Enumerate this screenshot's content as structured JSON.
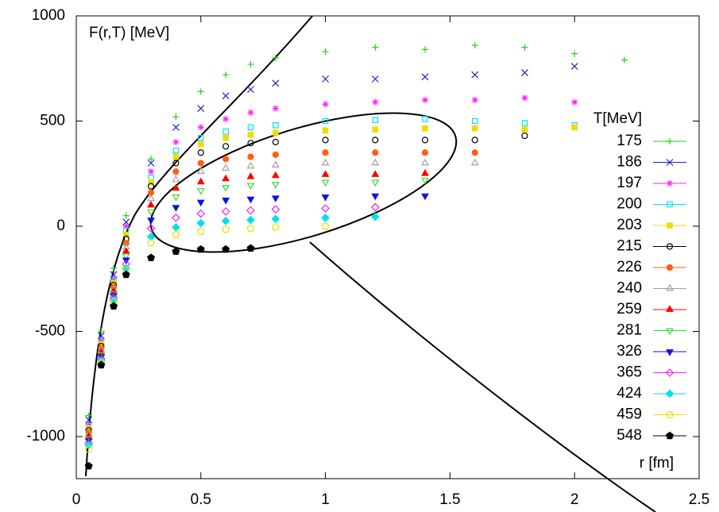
{
  "chart_data": {
    "type": "scatter",
    "ylabel": "F(r,T) [MeV]",
    "xlabel": "r [fm]",
    "legend_title": "T[MeV]",
    "legend_position": "right",
    "x": [
      0.05,
      0.1,
      0.15,
      0.2,
      0.3,
      0.4,
      0.5,
      0.6,
      0.7,
      0.8,
      1.0,
      1.2,
      1.4,
      1.6,
      1.8,
      2.0,
      2.2
    ],
    "xlim": [
      0,
      2.5
    ],
    "xticks": [
      0,
      0.5,
      1,
      1.5,
      2,
      2.5
    ],
    "ylim": [
      -1200,
      1000
    ],
    "yticks": [
      -1000,
      -500,
      0,
      500,
      1000
    ],
    "series": [
      {
        "name": "175",
        "color": "#22cc22",
        "marker": "plus",
        "values": [
          -900,
          -500,
          -200,
          50,
          320,
          520,
          640,
          720,
          770,
          800,
          830,
          850,
          840,
          860,
          850,
          820,
          790
        ]
      },
      {
        "name": "186",
        "color": "#2222cc",
        "marker": "cross",
        "values": [
          -920,
          -520,
          -230,
          20,
          300,
          470,
          560,
          620,
          650,
          680,
          700,
          700,
          710,
          720,
          730,
          760,
          null
        ]
      },
      {
        "name": "197",
        "color": "#ff22ff",
        "marker": "star",
        "values": [
          -940,
          -540,
          -250,
          0,
          260,
          400,
          470,
          510,
          540,
          560,
          580,
          590,
          600,
          600,
          610,
          590,
          null
        ]
      },
      {
        "name": "200",
        "color": "#00e0ff",
        "marker": "square",
        "values": [
          -950,
          -550,
          -260,
          -20,
          230,
          360,
          420,
          450,
          470,
          480,
          500,
          505,
          510,
          500,
          490,
          480,
          null
        ]
      },
      {
        "name": "203",
        "color": "#eedd00",
        "marker": "square-filled",
        "values": [
          -960,
          -560,
          -270,
          -40,
          210,
          330,
          390,
          420,
          435,
          445,
          455,
          460,
          465,
          465,
          460,
          470,
          null
        ]
      },
      {
        "name": "215",
        "color": "#000000",
        "marker": "circle",
        "values": [
          -970,
          -570,
          -280,
          -60,
          190,
          300,
          350,
          380,
          395,
          400,
          410,
          410,
          410,
          410,
          430,
          null,
          null
        ]
      },
      {
        "name": "226",
        "color": "#ff6010",
        "marker": "circle-filled",
        "values": [
          -980,
          -580,
          -290,
          -80,
          160,
          260,
          300,
          320,
          330,
          340,
          350,
          350,
          350,
          350,
          null,
          null,
          null
        ]
      },
      {
        "name": "240",
        "color": "#a0a0a0",
        "marker": "triangle",
        "values": [
          -990,
          -590,
          -300,
          -100,
          130,
          220,
          260,
          275,
          285,
          290,
          300,
          300,
          300,
          300,
          null,
          null,
          null
        ]
      },
      {
        "name": "259",
        "color": "#ff0000",
        "marker": "triangle-filled",
        "values": [
          -1000,
          -600,
          -310,
          -120,
          100,
          180,
          210,
          225,
          235,
          240,
          245,
          245,
          250,
          null,
          null,
          null,
          null
        ]
      },
      {
        "name": "281",
        "color": "#33dd33",
        "marker": "tdown",
        "values": [
          -1010,
          -610,
          -320,
          -140,
          70,
          140,
          170,
          185,
          195,
          200,
          210,
          210,
          220,
          null,
          null,
          null,
          null
        ]
      },
      {
        "name": "326",
        "color": "#1010ee",
        "marker": "tdown-filled",
        "values": [
          -1020,
          -620,
          -330,
          -160,
          30,
          90,
          115,
          125,
          130,
          135,
          140,
          145,
          145,
          null,
          null,
          null,
          null
        ]
      },
      {
        "name": "365",
        "color": "#ee22ee",
        "marker": "diamond",
        "values": [
          -1030,
          -630,
          -340,
          -180,
          -10,
          40,
          60,
          70,
          75,
          80,
          85,
          90,
          null,
          null,
          null,
          null,
          null
        ]
      },
      {
        "name": "424",
        "color": "#00e0ee",
        "marker": "diamond-filled",
        "values": [
          -1040,
          -640,
          -350,
          -200,
          -50,
          -5,
          15,
          25,
          30,
          35,
          40,
          45,
          null,
          null,
          null,
          null,
          null
        ]
      },
      {
        "name": "459",
        "color": "#eedd00",
        "marker": "pentagon",
        "values": [
          -1060,
          -650,
          -360,
          -210,
          -80,
          -40,
          -25,
          -15,
          -10,
          -5,
          0,
          null,
          null,
          null,
          null,
          null,
          null
        ]
      },
      {
        "name": "548",
        "color": "#000000",
        "marker": "pentagon-filled",
        "values": [
          -1140,
          -660,
          -380,
          -230,
          -150,
          -120,
          -110,
          -110,
          -105,
          null,
          null,
          null,
          null,
          null,
          null,
          null,
          null
        ]
      }
    ]
  }
}
